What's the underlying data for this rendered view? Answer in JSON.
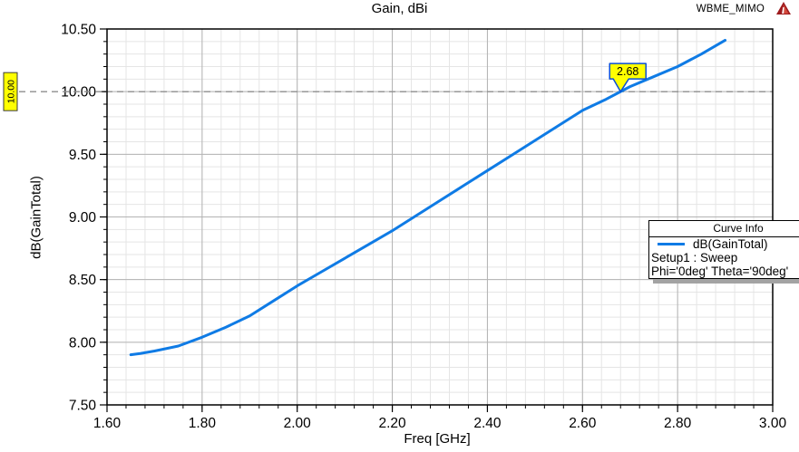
{
  "window": {
    "project_label": "WBME_MIMO",
    "logo_icon": "ansys-logo",
    "logo_colors": {
      "outer": "#9e1b1e",
      "inner": "#d44a3c"
    }
  },
  "chart_data": {
    "type": "line",
    "title": "Gain, dBi",
    "xlabel": "Freq [GHz]",
    "ylabel": "dB(GainTotal)",
    "xlim": [
      1.6,
      3.0
    ],
    "ylim": [
      7.5,
      10.5
    ],
    "grid": true,
    "x_ticks": {
      "values": [
        1.6,
        1.8,
        2.0,
        2.2,
        2.4,
        2.6,
        2.8,
        3.0
      ],
      "labels": [
        "1.60",
        "1.80",
        "2.00",
        "2.20",
        "2.40",
        "2.60",
        "2.80",
        "3.00"
      ],
      "minor_step": 0.04
    },
    "y_ticks": {
      "values": [
        7.5,
        8.0,
        8.5,
        9.0,
        9.5,
        10.0,
        10.5
      ],
      "labels": [
        "7.50",
        "8.00",
        "8.50",
        "9.00",
        "9.50",
        "10.00",
        "10.50"
      ],
      "minor_step": 0.1
    },
    "series": [
      {
        "name": "dB(GainTotal)",
        "color": "#0f7be5",
        "x": [
          1.65,
          1.67,
          1.7,
          1.75,
          1.8,
          1.85,
          1.9,
          1.95,
          2.0,
          2.05,
          2.1,
          2.15,
          2.2,
          2.25,
          2.3,
          2.35,
          2.4,
          2.45,
          2.5,
          2.55,
          2.6,
          2.65,
          2.7,
          2.75,
          2.8,
          2.85,
          2.9
        ],
        "y": [
          7.9,
          7.91,
          7.93,
          7.97,
          8.04,
          8.12,
          8.21,
          8.33,
          8.45,
          8.56,
          8.67,
          8.78,
          8.89,
          9.01,
          9.13,
          9.25,
          9.37,
          9.49,
          9.61,
          9.73,
          9.85,
          9.94,
          10.04,
          10.12,
          10.2,
          10.3,
          10.41
        ]
      }
    ],
    "reference_line": {
      "y": 10.0,
      "tag_label": "10.00",
      "style": "dashed",
      "color": "#8f8f8f",
      "tag_fill": "#ffff00",
      "tag_border": "#3a3a3a"
    },
    "marker": {
      "x": 2.68,
      "y": 10.0,
      "label": "2.68",
      "fill": "#ffff00",
      "border": "#0a4fd6"
    },
    "legend": {
      "title": "Curve Info",
      "position": "right",
      "entries": [
        {
          "name": "dB(GainTotal)",
          "color": "#0f7be5",
          "detail_lines": [
            "Setup1 : Sweep",
            "Phi='0deg' Theta='90deg'"
          ]
        }
      ]
    },
    "colors": {
      "grid_minor": "#e5e5e5",
      "grid_major": "#b3b3b3",
      "plot_border": "#000000",
      "plot_background": "#ffffff"
    }
  }
}
